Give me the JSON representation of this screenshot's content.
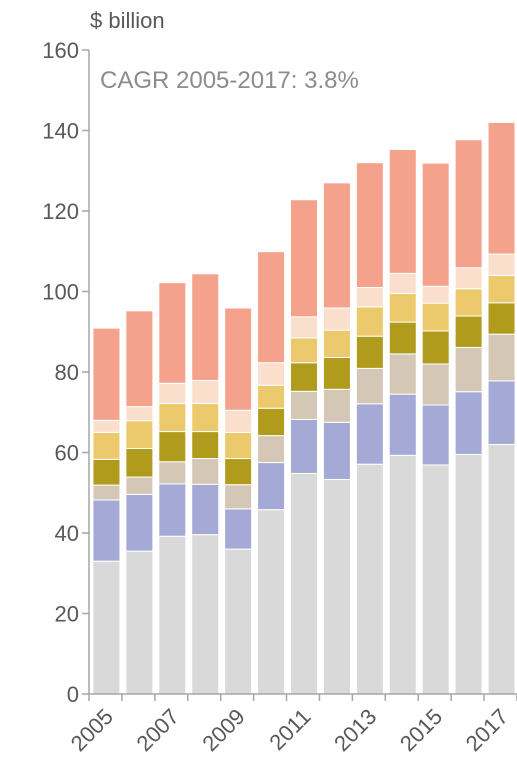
{
  "chart_data": {
    "type": "bar",
    "stacked": true,
    "ylabel": "$ billion",
    "annotation": "CAGR 2005-2017: 3.8%",
    "ylim": [
      0,
      160
    ],
    "yticks": [
      0,
      20,
      40,
      60,
      80,
      100,
      120,
      140,
      160
    ],
    "grid": false,
    "legend": "none",
    "categories": [
      "2005",
      "2006",
      "2007",
      "2008",
      "2009",
      "2010",
      "2011",
      "2012",
      "2013",
      "2014",
      "2015",
      "2016",
      "2017"
    ],
    "xtick_labels": [
      "2005",
      "",
      "2007",
      "",
      "2009",
      "",
      "2011",
      "",
      "2013",
      "",
      "2015",
      "",
      "2017"
    ],
    "series": [
      {
        "color": "#d9d9d9",
        "values": [
          33.0,
          35.5,
          39.2,
          39.6,
          36.0,
          45.8,
          54.8,
          53.3,
          57.1,
          59.3,
          56.9,
          59.5,
          62.0
        ]
      },
      {
        "color": "#a5a9d5",
        "values": [
          15.2,
          14.1,
          13.0,
          12.5,
          10.0,
          11.7,
          13.4,
          14.2,
          15.0,
          15.2,
          14.9,
          15.6,
          15.8
        ]
      },
      {
        "color": "#d4c7b6",
        "values": [
          3.7,
          4.3,
          5.5,
          6.4,
          6.0,
          6.7,
          7.0,
          8.2,
          8.8,
          10.0,
          10.2,
          11.0,
          11.6
        ]
      },
      {
        "color": "#b09b1c",
        "values": [
          6.4,
          7.1,
          7.5,
          6.7,
          6.5,
          6.8,
          7.1,
          7.9,
          8.0,
          7.9,
          8.2,
          7.8,
          7.8
        ]
      },
      {
        "color": "#ecc96d",
        "values": [
          6.7,
          6.9,
          7.0,
          7.0,
          6.5,
          5.7,
          6.2,
          6.8,
          7.3,
          7.1,
          6.9,
          6.8,
          6.8
        ]
      },
      {
        "color": "#fadfcd",
        "values": [
          3.0,
          3.5,
          5.0,
          5.7,
          5.5,
          5.6,
          5.2,
          5.5,
          4.8,
          5.0,
          4.2,
          5.2,
          5.3
        ]
      },
      {
        "color": "#f4a28c",
        "values": [
          22.9,
          23.8,
          25.0,
          26.5,
          25.4,
          27.6,
          29.1,
          31.1,
          31.0,
          30.8,
          30.6,
          31.8,
          32.7
        ]
      }
    ]
  }
}
